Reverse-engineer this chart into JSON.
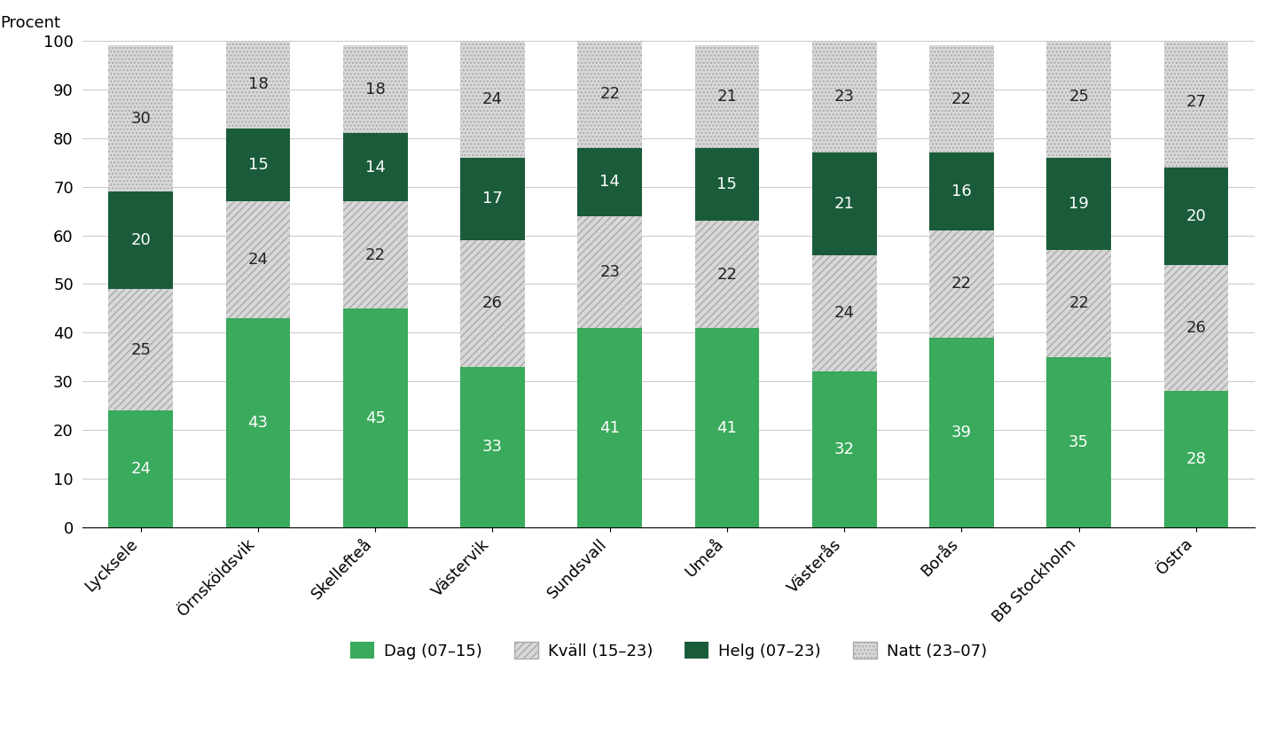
{
  "categories": [
    "Lycksele",
    "Örnsköldsvik",
    "Skellefteå",
    "Västervik",
    "Sundsvall",
    "Umeå",
    "Västerås",
    "Borås",
    "BB Stockholm",
    "Östra"
  ],
  "dag": [
    24,
    43,
    45,
    33,
    41,
    41,
    32,
    39,
    35,
    28
  ],
  "kvall": [
    25,
    24,
    22,
    26,
    23,
    22,
    24,
    22,
    22,
    26
  ],
  "helg": [
    20,
    15,
    14,
    17,
    14,
    15,
    21,
    16,
    19,
    20
  ],
  "natt": [
    30,
    18,
    18,
    24,
    22,
    21,
    23,
    22,
    25,
    27
  ],
  "dag_color": "#3aaa5c",
  "kvall_face": "#d8d8d8",
  "helg_color": "#1a5c3a",
  "natt_face": "#d8d8d8",
  "background_color": "#ffffff",
  "procent_label": "Procent",
  "ylim": [
    0,
    100
  ],
  "legend_labels": [
    "Dag (07–15)",
    "Kväll (15–23)",
    "Helg (07–23)",
    "Natt (23–07)"
  ],
  "label_fontsize": 13,
  "tick_fontsize": 13,
  "number_fontsize": 13,
  "bar_width": 0.55
}
